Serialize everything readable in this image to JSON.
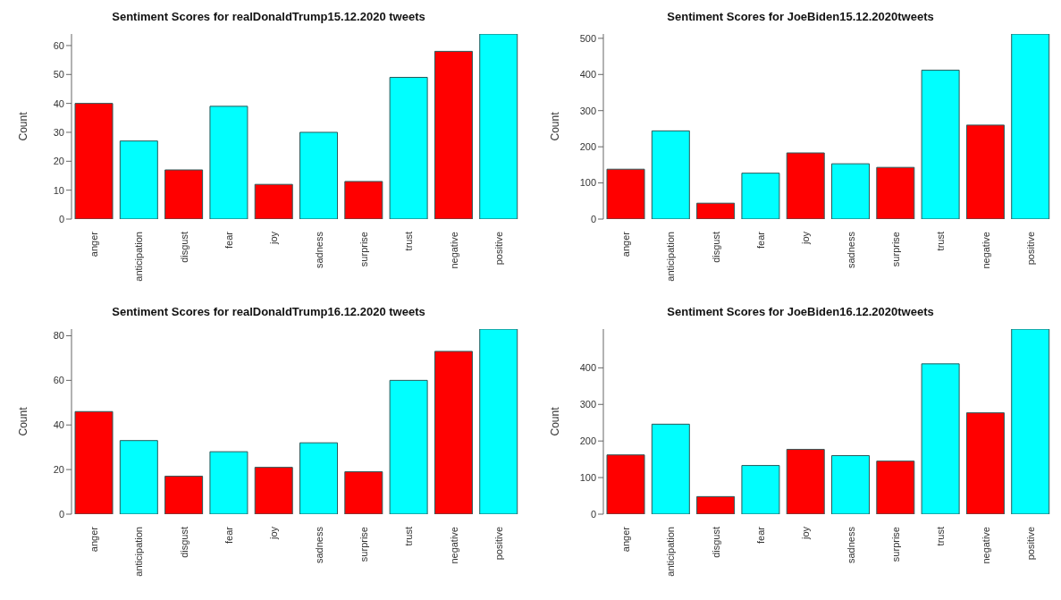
{
  "chart_data": [
    {
      "type": "bar",
      "title": "Sentiment Scores for realDonaldTrump15.12.2020 tweets",
      "ylabel": "Count",
      "categories": [
        "anger",
        "anticipation",
        "disgust",
        "fear",
        "joy",
        "sadness",
        "surprise",
        "trust",
        "negative",
        "positive"
      ],
      "values": [
        40,
        27,
        17,
        39,
        12,
        30,
        13,
        49,
        58,
        64
      ],
      "colors": [
        "#ff0000",
        "#00ffff",
        "#ff0000",
        "#00ffff",
        "#ff0000",
        "#00ffff",
        "#ff0000",
        "#00ffff",
        "#ff0000",
        "#00ffff"
      ],
      "ylim": [
        0,
        64
      ],
      "yticks": [
        0,
        10,
        20,
        30,
        40,
        50,
        60
      ],
      "grid": false
    },
    {
      "type": "bar",
      "title": "Sentiment Scores for JoeBiden15.12.2020tweets",
      "ylabel": "Count",
      "categories": [
        "anger",
        "anticipation",
        "disgust",
        "fear",
        "joy",
        "sadness",
        "surprise",
        "trust",
        "negative",
        "positive"
      ],
      "values": [
        138,
        244,
        44,
        127,
        183,
        153,
        143,
        412,
        260,
        512
      ],
      "colors": [
        "#ff0000",
        "#00ffff",
        "#ff0000",
        "#00ffff",
        "#ff0000",
        "#00ffff",
        "#ff0000",
        "#00ffff",
        "#ff0000",
        "#00ffff"
      ],
      "ylim": [
        0,
        512
      ],
      "yticks": [
        0,
        100,
        200,
        300,
        400,
        500
      ],
      "grid": false
    },
    {
      "type": "bar",
      "title": "Sentiment Scores for realDonaldTrump16.12.2020 tweets",
      "ylabel": "Count",
      "categories": [
        "anger",
        "anticipation",
        "disgust",
        "fear",
        "joy",
        "sadness",
        "surprise",
        "trust",
        "negative",
        "positive"
      ],
      "values": [
        46,
        33,
        17,
        28,
        21,
        32,
        19,
        60,
        73,
        83
      ],
      "colors": [
        "#ff0000",
        "#00ffff",
        "#ff0000",
        "#00ffff",
        "#ff0000",
        "#00ffff",
        "#ff0000",
        "#00ffff",
        "#ff0000",
        "#00ffff"
      ],
      "ylim": [
        0,
        83
      ],
      "yticks": [
        0,
        20,
        40,
        60,
        80
      ],
      "grid": false
    },
    {
      "type": "bar",
      "title": "Sentiment Scores for JoeBiden16.12.2020tweets",
      "ylabel": "Count",
      "categories": [
        "anger",
        "anticipation",
        "disgust",
        "fear",
        "joy",
        "sadness",
        "surprise",
        "trust",
        "negative",
        "positive"
      ],
      "values": [
        162,
        246,
        48,
        133,
        177,
        160,
        145,
        411,
        277,
        506
      ],
      "colors": [
        "#ff0000",
        "#00ffff",
        "#ff0000",
        "#00ffff",
        "#ff0000",
        "#00ffff",
        "#ff0000",
        "#00ffff",
        "#ff0000",
        "#00ffff"
      ],
      "ylim": [
        0,
        506
      ],
      "yticks": [
        0,
        100,
        200,
        300,
        400
      ],
      "grid": false
    }
  ]
}
